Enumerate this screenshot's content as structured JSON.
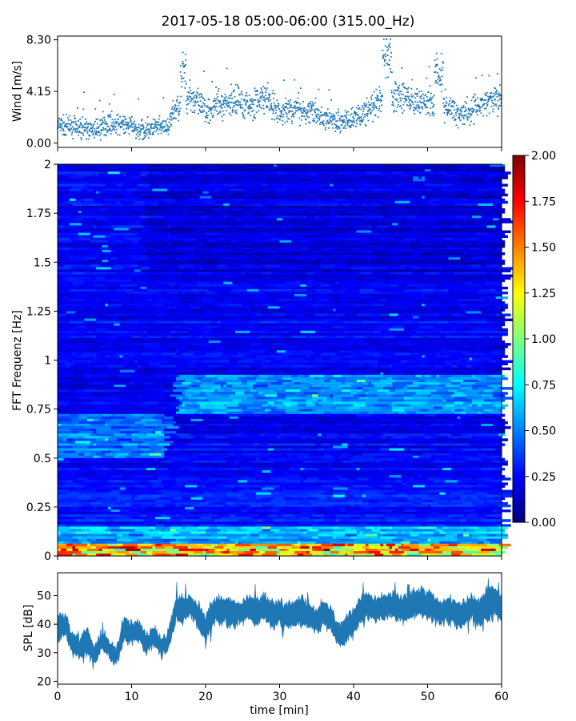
{
  "title": "2017-05-18 05:00-06:00 (315.00_Hz)",
  "colors": {
    "scatter": "#1f77b4",
    "spl_fill": "#1f77b4",
    "colormap": [
      "#00007f",
      "#0000ff",
      "#007fff",
      "#00ffff",
      "#7fff7f",
      "#ffff00",
      "#ff7f00",
      "#ff0000",
      "#7f0000"
    ]
  },
  "chart_data": [
    {
      "type": "scatter",
      "name": "wind",
      "xlabel": "",
      "ylabel": "Wind [m/s]",
      "xlim": [
        0,
        60
      ],
      "ylim": [
        -0.35,
        8.6
      ],
      "yticks": [
        0,
        4.15,
        8.3
      ],
      "ytick_labels": [
        "0.00",
        "4.15",
        "8.30"
      ],
      "trend_x": [
        0,
        3,
        5,
        7,
        9,
        11,
        13,
        15,
        16,
        18,
        20,
        22,
        24,
        26,
        28,
        30,
        32,
        34,
        36,
        38,
        40,
        42,
        44,
        46,
        48,
        50,
        52,
        54,
        56,
        58,
        60
      ],
      "trend_y": [
        1.4,
        1.2,
        1.0,
        1.6,
        1.5,
        1.0,
        1.2,
        1.3,
        2.8,
        3.8,
        2.6,
        3.2,
        3.4,
        3.0,
        3.6,
        2.4,
        2.8,
        2.6,
        2.0,
        1.6,
        2.0,
        2.6,
        3.4,
        3.9,
        3.2,
        3.4,
        2.9,
        2.4,
        2.7,
        3.3,
        3.6
      ],
      "grid": false
    },
    {
      "type": "heatmap",
      "name": "spectrogram",
      "xlabel": "",
      "ylabel": "FFT Frequenz [Hz]",
      "xlim": [
        0,
        60
      ],
      "ylim": [
        0,
        2
      ],
      "yticks": [
        0,
        0.25,
        0.5,
        0.75,
        1,
        1.25,
        1.5,
        1.75,
        2
      ],
      "ytick_labels": [
        "0",
        "0.25",
        "0.5",
        "0.75",
        "1",
        "1.25",
        "1.5",
        "1.75",
        "2"
      ],
      "color_range": [
        0,
        2
      ],
      "colorbar_ticks": [
        0,
        0.25,
        0.5,
        0.75,
        1,
        1.25,
        1.5,
        1.75,
        2
      ],
      "colorbar_labels": [
        "0.00",
        "0.25",
        "0.50",
        "0.75",
        "1.00",
        "1.25",
        "1.50",
        "1.75",
        "2.00"
      ],
      "features": {
        "low_band_hz": [
          0,
          0.06
        ],
        "band_075_hz_after_min": 16,
        "band_055_hz_minutes": [
          0,
          15
        ]
      }
    },
    {
      "type": "area",
      "name": "spl",
      "xlabel": "time [min]",
      "ylabel": "SPL [dB]",
      "xlim": [
        0,
        60
      ],
      "ylim": [
        19,
        58
      ],
      "yticks": [
        20,
        30,
        40,
        50
      ],
      "ytick_labels": [
        "20",
        "30",
        "40",
        "50"
      ],
      "xticks": [
        0,
        10,
        20,
        30,
        40,
        50,
        60
      ],
      "xtick_labels": [
        "0",
        "10",
        "20",
        "30",
        "40",
        "50",
        "60"
      ],
      "x": [
        0,
        1,
        2,
        3,
        4,
        5,
        6,
        7,
        8,
        9,
        10,
        11,
        12,
        13,
        14,
        15,
        16,
        17,
        18,
        19,
        20,
        21,
        22,
        23,
        24,
        25,
        26,
        27,
        28,
        29,
        30,
        31,
        32,
        33,
        34,
        35,
        36,
        37,
        38,
        39,
        40,
        41,
        42,
        43,
        44,
        45,
        46,
        47,
        48,
        49,
        50,
        51,
        52,
        53,
        54,
        55,
        56,
        57,
        58,
        59,
        60
      ],
      "center": [
        38,
        40,
        33,
        32,
        34,
        29,
        34,
        31,
        29,
        38,
        37,
        38,
        33,
        36,
        32,
        34,
        46,
        45,
        46,
        43,
        39,
        44,
        45,
        44,
        43,
        45,
        46,
        44,
        46,
        43,
        44,
        43,
        44,
        45,
        43,
        41,
        44,
        42,
        36,
        38,
        42,
        45,
        47,
        45,
        46,
        47,
        46,
        45,
        47,
        48,
        47,
        45,
        44,
        45,
        43,
        44,
        46,
        44,
        47,
        48,
        45
      ],
      "band": [
        4,
        4,
        3,
        3,
        4,
        3,
        3,
        3,
        3,
        4,
        3,
        3,
        3,
        3,
        3,
        3,
        4,
        4,
        3,
        4,
        4,
        4,
        4,
        4,
        4,
        3,
        4,
        4,
        4,
        4,
        4,
        4,
        4,
        4,
        4,
        4,
        4,
        4,
        3,
        4,
        4,
        4,
        4,
        4,
        4,
        4,
        4,
        4,
        4,
        4,
        4,
        4,
        4,
        4,
        4,
        4,
        4,
        4,
        5,
        5,
        4
      ],
      "grid": false
    }
  ]
}
